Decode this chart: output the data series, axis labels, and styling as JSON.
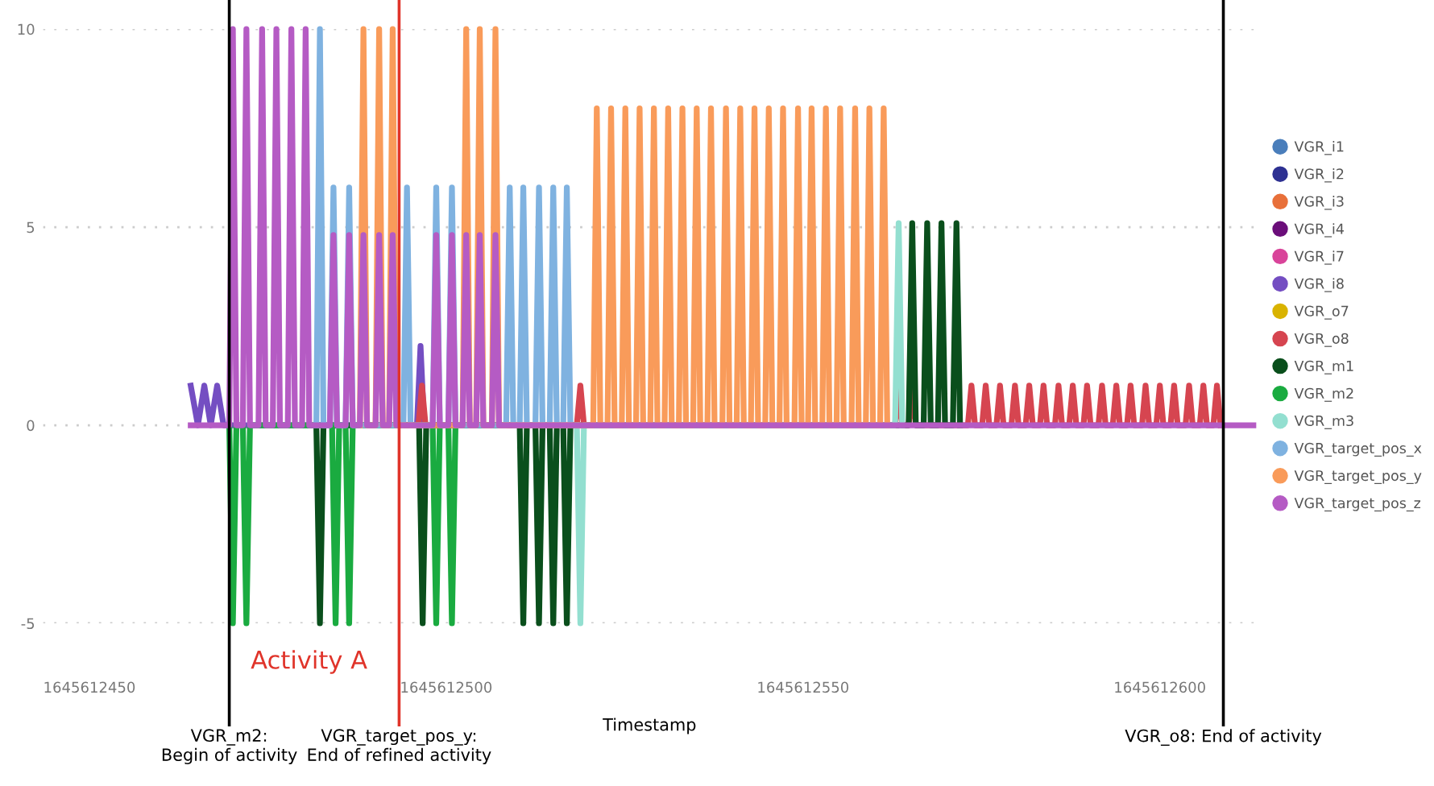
{
  "chart_data": {
    "type": "line",
    "xlabel": "Timestamp",
    "xlim": [
      1645612443.5,
      1645612613.5
    ],
    "xticks": [
      1645612450,
      1645612500,
      1645612550,
      1645612600
    ],
    "ylim": [
      -5,
      10
    ],
    "yticks": [
      -5,
      0,
      5,
      10
    ],
    "grid": "y",
    "legend": "right",
    "ref_lines": [
      {
        "axis": "x",
        "value": 1645612469.6,
        "label": "VGR_m2:\nBegin of activity",
        "color": "#000000"
      },
      {
        "axis": "x",
        "value": 1645612493.4,
        "label": "VGR_target_pos_y:\nEnd of refined activity",
        "color": "#e0342a"
      },
      {
        "axis": "x",
        "value": 1645612608.9,
        "label": "VGR_o8: End of activity",
        "color": "#000000"
      }
    ],
    "annotations": [
      "Activity A"
    ],
    "series": [
      {
        "name": "VGR_i1",
        "color": "#4a7ebb"
      },
      {
        "name": "VGR_i2",
        "color": "#2e3192"
      },
      {
        "name": "VGR_i3",
        "color": "#e8703a"
      },
      {
        "name": "VGR_i4",
        "color": "#6b0e7a"
      },
      {
        "name": "VGR_i7",
        "color": "#d9449a"
      },
      {
        "name": "VGR_i8",
        "color": "#744ec2",
        "x": [
          1645612464.2,
          1645612465.2,
          1645612466.1,
          1645612467.0,
          1645612467.9,
          1645612468.8,
          1645612495.9,
          1645612496.4,
          1645612496.9
        ],
        "values": [
          1,
          0,
          1,
          0,
          1,
          0,
          0,
          2,
          0
        ]
      },
      {
        "name": "VGR_o7",
        "color": "#d9b300"
      },
      {
        "name": "VGR_o8",
        "color": "#d64550",
        "x": [
          1645612496.1,
          1645612496.6,
          1645612497.1,
          1645612518.3,
          1645612518.8,
          1645612519.3,
          1645612562.9,
          1645612563.4,
          1645612563.9,
          1645612564.8,
          1645612565.3,
          1645612565.8,
          1645612573.1,
          1645612573.6,
          1645612574.1,
          1645612575.1,
          1645612575.6,
          1645612576.1,
          1645612577.1,
          1645612577.6,
          1645612578.1,
          1645612579.2,
          1645612579.7,
          1645612580.2,
          1645612581.2,
          1645612581.7,
          1645612582.2,
          1645612583.2,
          1645612583.7,
          1645612584.2,
          1645612585.3,
          1645612585.8,
          1645612586.3,
          1645612587.3,
          1645612587.8,
          1645612588.3,
          1645612589.3,
          1645612589.8,
          1645612590.3,
          1645612591.4,
          1645612591.9,
          1645612592.4,
          1645612593.4,
          1645612593.9,
          1645612594.4,
          1645612595.4,
          1645612595.9,
          1645612596.4,
          1645612597.5,
          1645612598.0,
          1645612598.5,
          1645612599.5,
          1645612600.0,
          1645612600.5,
          1645612601.5,
          1645612602.0,
          1645612602.5,
          1645612603.6,
          1645612604.1,
          1645612604.6,
          1645612605.6,
          1645612606.1,
          1645612606.6,
          1645612607.5,
          1645612608.0,
          1645612608.5
        ],
        "values": [
          0,
          1,
          0,
          0,
          1,
          0,
          0,
          1,
          0,
          0,
          1,
          0,
          0,
          1,
          0,
          0,
          1,
          0,
          0,
          1,
          0,
          0,
          1,
          0,
          0,
          1,
          0,
          0,
          1,
          0,
          0,
          1,
          0,
          0,
          1,
          0,
          0,
          1,
          0,
          0,
          1,
          0,
          0,
          1,
          0,
          0,
          1,
          0,
          0,
          1,
          0,
          0,
          1,
          0,
          0,
          1,
          0,
          0,
          1,
          0,
          0,
          1,
          0,
          0,
          1,
          0
        ]
      },
      {
        "name": "VGR_m1",
        "color": "#0a4f1c",
        "x": [
          1645612481.8,
          1645612482.3,
          1645612482.8,
          1645612496.2,
          1645612496.7,
          1645612497.2,
          1645612510.3,
          1645612510.8,
          1645612511.3,
          1645612512.5,
          1645612513.0,
          1645612513.5,
          1645612514.5,
          1645612515.0,
          1645612515.5,
          1645612516.4,
          1645612516.9,
          1645612517.4,
          1645612564.8,
          1645612565.3,
          1645612565.8,
          1645612566.9,
          1645612567.4,
          1645612567.9,
          1645612568.9,
          1645612569.4,
          1645612569.9,
          1645612571.0,
          1645612571.5,
          1645612572.0
        ],
        "values": [
          0,
          -5,
          0,
          0,
          -5,
          0,
          0,
          -5,
          0,
          0,
          -5,
          0,
          0,
          -5,
          0,
          0,
          -5,
          0,
          0,
          5.1,
          0,
          0,
          5.1,
          0,
          0,
          5.1,
          0,
          0,
          5.1,
          0
        ]
      },
      {
        "name": "VGR_m2",
        "color": "#1aab40",
        "x": [
          1645612469.6,
          1645612470.1,
          1645612470.6,
          1645612471.5,
          1645612472.0,
          1645612472.5,
          1645612484.0,
          1645612484.5,
          1645612485.0,
          1645612485.9,
          1645612486.4,
          1645612486.9,
          1645612498.1,
          1645612498.6,
          1645612499.1,
          1645612500.3,
          1645612500.8,
          1645612501.3
        ],
        "values": [
          0,
          -5,
          0,
          0,
          -5,
          0,
          0,
          -5,
          0,
          0,
          -5,
          0,
          0,
          -5,
          0,
          0,
          -5,
          0
        ]
      },
      {
        "name": "VGR_m3",
        "color": "#93dfd0",
        "x": [
          1645612518.3,
          1645612518.8,
          1645612519.3,
          1645612562.9,
          1645612563.4,
          1645612563.9
        ],
        "values": [
          0,
          -5,
          0,
          0,
          5.1,
          0
        ]
      },
      {
        "name": "VGR_target_pos_x",
        "color": "#7fb2e0",
        "x": [
          1645612481.8,
          1645612482.3,
          1645612482.8,
          1645612483.7,
          1645612484.2,
          1645612484.7,
          1645612485.9,
          1645612486.4,
          1645612486.9,
          1645612494.0,
          1645612494.5,
          1645612495.0,
          1645612498.1,
          1645612498.6,
          1645612499.1,
          1645612500.3,
          1645612500.8,
          1645612501.3,
          1645612508.4,
          1645612508.9,
          1645612509.4,
          1645612510.3,
          1645612510.8,
          1645612511.3,
          1645612512.5,
          1645612513.0,
          1645612513.5,
          1645612514.5,
          1645612515.0,
          1645612515.5,
          1645612516.4,
          1645612516.9,
          1645612517.4
        ],
        "values": [
          0,
          10,
          0,
          0,
          6,
          0,
          0,
          6,
          0,
          0,
          6,
          0,
          0,
          6,
          0,
          0,
          6,
          0,
          0,
          6,
          0,
          0,
          6,
          0,
          0,
          6,
          0,
          0,
          6,
          0,
          0,
          6,
          0
        ]
      },
      {
        "name": "VGR_target_pos_y",
        "color": "#f99b5a",
        "x": [
          1645612487.9,
          1645612488.4,
          1645612488.9,
          1645612490.1,
          1645612490.6,
          1645612491.1,
          1645612492.0,
          1645612492.5,
          1645612493.0,
          1645612502.3,
          1645612502.8,
          1645612503.3,
          1645612504.2,
          1645612504.7,
          1645612505.2,
          1645612506.4,
          1645612506.9,
          1645612507.4,
          1645612520.6,
          1645612521.1,
          1645612521.6,
          1645612522.6,
          1645612523.1,
          1645612523.6,
          1645612524.6,
          1645612525.1,
          1645612525.6,
          1645612526.6,
          1645612527.1,
          1645612527.6,
          1645612528.6,
          1645612529.1,
          1645612529.6,
          1645612530.6,
          1645612531.1,
          1645612531.6,
          1645612532.6,
          1645612533.1,
          1645612533.6,
          1645612534.6,
          1645612535.1,
          1645612535.6,
          1645612536.6,
          1645612537.1,
          1645612537.6,
          1645612538.7,
          1645612539.2,
          1645612539.7,
          1645612540.7,
          1645612541.2,
          1645612541.7,
          1645612542.7,
          1645612543.2,
          1645612543.7,
          1645612544.7,
          1645612545.2,
          1645612545.7,
          1645612546.7,
          1645612547.2,
          1645612547.7,
          1645612548.8,
          1645612549.3,
          1645612549.8,
          1645612550.7,
          1645612551.2,
          1645612551.7,
          1645612552.7,
          1645612553.2,
          1645612553.7,
          1645612554.7,
          1645612555.2,
          1645612555.7,
          1645612556.8,
          1645612557.3,
          1645612557.8,
          1645612558.8,
          1645612559.3,
          1645612559.8,
          1645612560.8,
          1645612561.3,
          1645612561.8
        ],
        "values": [
          0,
          10,
          0,
          0,
          10,
          0,
          0,
          10,
          0,
          0,
          10,
          0,
          0,
          10,
          0,
          0,
          10,
          0,
          0,
          8,
          0,
          0,
          8,
          0,
          0,
          8,
          0,
          0,
          8,
          0,
          0,
          8,
          0,
          0,
          8,
          0,
          0,
          8,
          0,
          0,
          8,
          0,
          0,
          8,
          0,
          0,
          8,
          0,
          0,
          8,
          0,
          0,
          8,
          0,
          0,
          8,
          0,
          0,
          8,
          0,
          0,
          8,
          0,
          0,
          8,
          0,
          0,
          8,
          0,
          0,
          8,
          0,
          0,
          8,
          0,
          0,
          8,
          0,
          0,
          8,
          0
        ]
      },
      {
        "name": "VGR_target_pos_z",
        "color": "#b55bc4",
        "x": [
          1645612464.2,
          1645612469.6,
          1645612470.1,
          1645612470.6,
          1645612471.5,
          1645612472.0,
          1645612472.5,
          1645612473.7,
          1645612474.2,
          1645612474.7,
          1645612475.7,
          1645612476.2,
          1645612476.7,
          1645612477.8,
          1645612478.3,
          1645612478.8,
          1645612479.8,
          1645612480.3,
          1645612480.8,
          1645612483.7,
          1645612484.2,
          1645612484.7,
          1645612485.9,
          1645612486.4,
          1645612486.9,
          1645612487.9,
          1645612488.4,
          1645612488.9,
          1645612490.1,
          1645612490.6,
          1645612491.1,
          1645612492.0,
          1645612492.5,
          1645612493.0,
          1645612498.1,
          1645612498.6,
          1645612499.1,
          1645612500.3,
          1645612500.8,
          1645612501.3,
          1645612502.3,
          1645612502.8,
          1645612503.3,
          1645612504.2,
          1645612504.7,
          1645612505.2,
          1645612506.4,
          1645612506.9,
          1645612507.4,
          1645612613.1
        ],
        "values": [
          0,
          0,
          10,
          0,
          0,
          10,
          0,
          0,
          10,
          0,
          0,
          10,
          0,
          0,
          10,
          0,
          0,
          10,
          0,
          0,
          4.8,
          0,
          0,
          4.8,
          0,
          0,
          4.8,
          0,
          0,
          4.8,
          0,
          0,
          4.8,
          0,
          0,
          4.8,
          0,
          0,
          4.8,
          0,
          0,
          4.8,
          0,
          0,
          4.8,
          0,
          0,
          4.8,
          0,
          0
        ]
      }
    ]
  }
}
